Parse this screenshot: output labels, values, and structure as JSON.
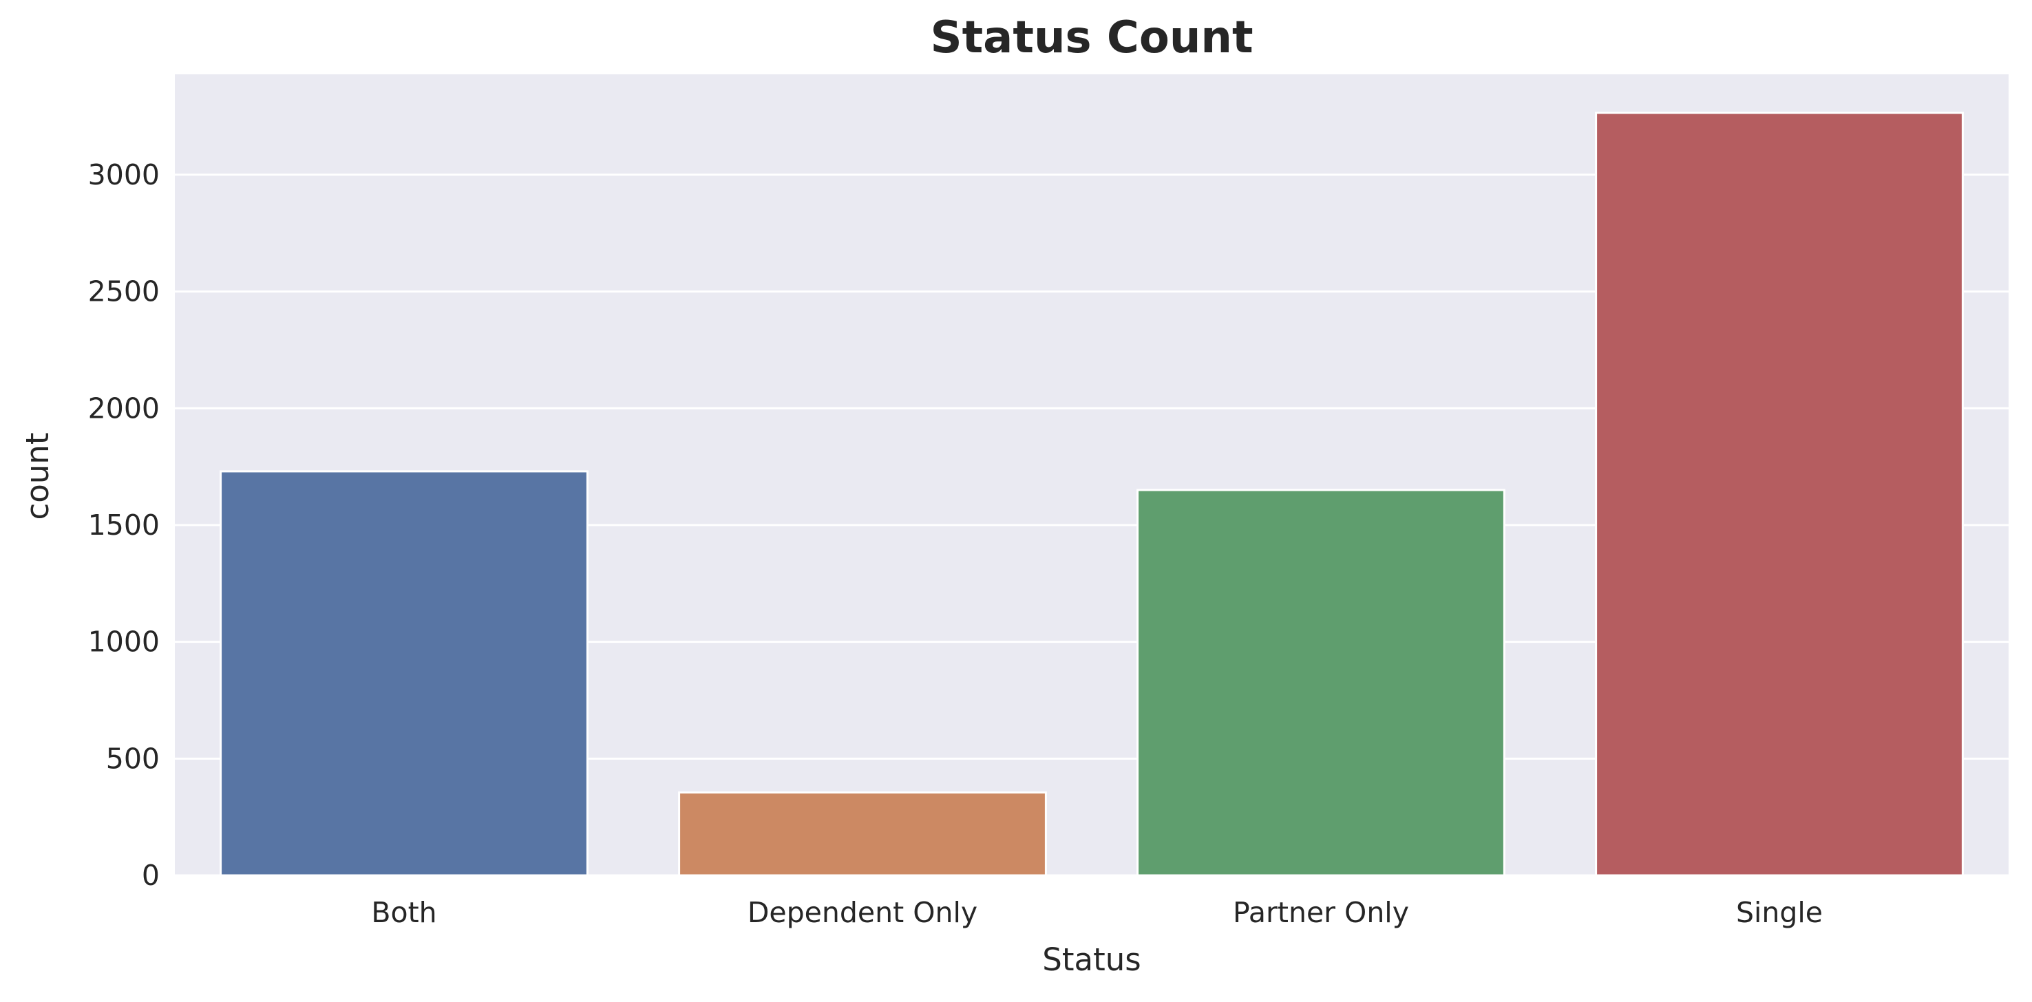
{
  "chart_data": {
    "type": "bar",
    "title": "Status Count",
    "xlabel": "Status",
    "ylabel": "count",
    "categories": [
      "Both",
      "Dependent Only",
      "Partner Only",
      "Single"
    ],
    "values": [
      1730,
      355,
      1650,
      3265
    ],
    "colors": [
      "#5875a4",
      "#cc8963",
      "#5f9e6e",
      "#b55d60"
    ],
    "ylim": [
      0,
      3430
    ],
    "yticks": [
      0,
      500,
      1000,
      1500,
      2000,
      2500,
      3000
    ],
    "grid": true,
    "background_color": "#eaeaf2",
    "grid_color": "#ffffff"
  }
}
